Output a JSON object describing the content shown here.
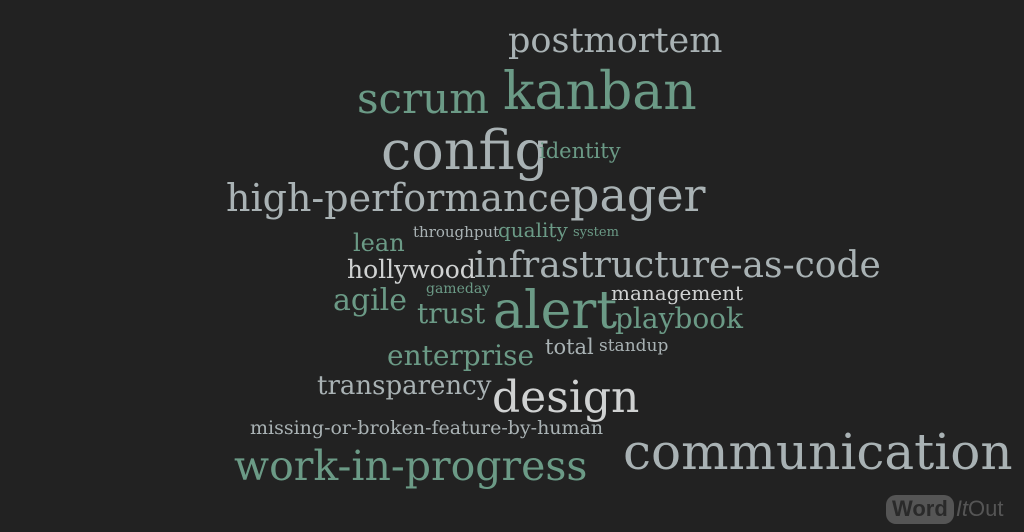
{
  "colors": {
    "background": "#222222",
    "green": "#6b9a86",
    "silver": "#a9b2b4",
    "light": "#d0d2d2"
  },
  "words": [
    "postmortem",
    "scrum",
    "kanban",
    "config",
    "identity",
    "high-performance",
    "pager",
    "lean",
    "throughput",
    "quality",
    "system",
    "hollywood",
    "infrastructure-as-code",
    "agile",
    "gameday",
    "management",
    "trust",
    "alert",
    "playbook",
    "enterprise",
    "total",
    "standup",
    "transparency",
    "design",
    "missing-or-broken-feature-by-human",
    "communication",
    "work-in-progress"
  ],
  "logo": {
    "part1": "Word",
    "part2": "It",
    "part3": "Out"
  }
}
